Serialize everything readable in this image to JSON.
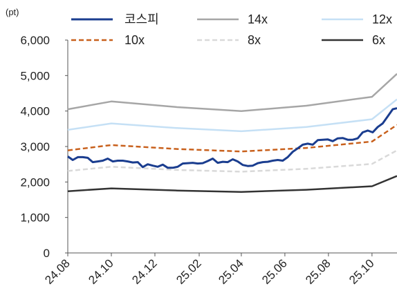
{
  "chart_data": {
    "type": "line",
    "unit_label": "(pt)",
    "ylim": [
      0,
      6000
    ],
    "yticks": [
      "6,000",
      "5,000",
      "4,000",
      "3,000",
      "2,000",
      "1,000",
      "0"
    ],
    "ytick_values": [
      6000,
      5000,
      4000,
      3000,
      2000,
      1000,
      0
    ],
    "xlim": [
      "2024-08-01",
      "2025-11-05"
    ],
    "xticks": [
      "24.08",
      "24.10",
      "24.12",
      "25.02",
      "25.04",
      "25.06",
      "25.08",
      "25.10"
    ],
    "xtick_dates": [
      "2024-08-01",
      "2024-10-01",
      "2024-12-01",
      "2025-02-01",
      "2025-04-01",
      "2025-06-01",
      "2025-08-01",
      "2025-10-01"
    ],
    "grid": false,
    "legend_position": "top",
    "series": [
      {
        "name": "코스피",
        "color": "#1a3d8f",
        "dash": "solid",
        "width": 3,
        "points": [
          [
            "2024-08-01",
            2720
          ],
          [
            "2024-08-08",
            2620
          ],
          [
            "2024-08-15",
            2700
          ],
          [
            "2024-08-22",
            2700
          ],
          [
            "2024-08-29",
            2680
          ],
          [
            "2024-09-05",
            2560
          ],
          [
            "2024-09-12",
            2580
          ],
          [
            "2024-09-19",
            2600
          ],
          [
            "2024-09-26",
            2660
          ],
          [
            "2024-10-03",
            2580
          ],
          [
            "2024-10-10",
            2600
          ],
          [
            "2024-10-17",
            2600
          ],
          [
            "2024-10-24",
            2580
          ],
          [
            "2024-10-31",
            2550
          ],
          [
            "2024-11-07",
            2560
          ],
          [
            "2024-11-14",
            2420
          ],
          [
            "2024-11-21",
            2500
          ],
          [
            "2024-11-28",
            2460
          ],
          [
            "2024-12-05",
            2430
          ],
          [
            "2024-12-12",
            2490
          ],
          [
            "2024-12-19",
            2400
          ],
          [
            "2024-12-26",
            2400
          ],
          [
            "2025-01-02",
            2430
          ],
          [
            "2025-01-09",
            2520
          ],
          [
            "2025-01-16",
            2530
          ],
          [
            "2025-01-23",
            2540
          ],
          [
            "2025-01-30",
            2520
          ],
          [
            "2025-02-06",
            2530
          ],
          [
            "2025-02-13",
            2590
          ],
          [
            "2025-02-20",
            2660
          ],
          [
            "2025-02-27",
            2540
          ],
          [
            "2025-03-06",
            2570
          ],
          [
            "2025-03-13",
            2560
          ],
          [
            "2025-03-20",
            2640
          ],
          [
            "2025-03-27",
            2580
          ],
          [
            "2025-04-03",
            2480
          ],
          [
            "2025-04-10",
            2450
          ],
          [
            "2025-04-17",
            2460
          ],
          [
            "2025-04-24",
            2530
          ],
          [
            "2025-05-01",
            2560
          ],
          [
            "2025-05-08",
            2570
          ],
          [
            "2025-05-15",
            2600
          ],
          [
            "2025-05-22",
            2620
          ],
          [
            "2025-05-29",
            2600
          ],
          [
            "2025-06-05",
            2700
          ],
          [
            "2025-06-12",
            2850
          ],
          [
            "2025-06-19",
            2950
          ],
          [
            "2025-06-26",
            3050
          ],
          [
            "2025-07-03",
            3080
          ],
          [
            "2025-07-10",
            3050
          ],
          [
            "2025-07-17",
            3180
          ],
          [
            "2025-07-24",
            3190
          ],
          [
            "2025-07-31",
            3200
          ],
          [
            "2025-08-07",
            3150
          ],
          [
            "2025-08-14",
            3230
          ],
          [
            "2025-08-21",
            3240
          ],
          [
            "2025-08-28",
            3190
          ],
          [
            "2025-09-04",
            3190
          ],
          [
            "2025-09-11",
            3230
          ],
          [
            "2025-09-18",
            3400
          ],
          [
            "2025-09-25",
            3450
          ],
          [
            "2025-10-02",
            3400
          ],
          [
            "2025-10-09",
            3550
          ],
          [
            "2025-10-16",
            3650
          ],
          [
            "2025-10-23",
            3850
          ],
          [
            "2025-10-30",
            4050
          ],
          [
            "2025-11-05",
            4080
          ]
        ]
      },
      {
        "name": "14x",
        "color": "#a6a6a6",
        "dash": "solid",
        "width": 2.5,
        "points": [
          [
            "2024-08-01",
            4050
          ],
          [
            "2024-10-01",
            4270
          ],
          [
            "2025-01-01",
            4110
          ],
          [
            "2025-04-01",
            4000
          ],
          [
            "2025-07-01",
            4150
          ],
          [
            "2025-10-01",
            4400
          ],
          [
            "2025-11-05",
            5050
          ]
        ]
      },
      {
        "name": "12x",
        "color": "#c5e0f5",
        "dash": "solid",
        "width": 2.5,
        "points": [
          [
            "2024-08-01",
            3470
          ],
          [
            "2024-10-01",
            3650
          ],
          [
            "2025-01-01",
            3520
          ],
          [
            "2025-04-01",
            3430
          ],
          [
            "2025-07-01",
            3550
          ],
          [
            "2025-10-01",
            3770
          ],
          [
            "2025-11-05",
            4330
          ]
        ]
      },
      {
        "name": "10x",
        "color": "#c8601c",
        "dash": "dashed",
        "width": 2.5,
        "points": [
          [
            "2024-08-01",
            2890
          ],
          [
            "2024-10-01",
            3040
          ],
          [
            "2025-01-01",
            2930
          ],
          [
            "2025-04-01",
            2860
          ],
          [
            "2025-07-01",
            2960
          ],
          [
            "2025-10-01",
            3140
          ],
          [
            "2025-11-05",
            3610
          ]
        ]
      },
      {
        "name": "8x",
        "color": "#d9d9d9",
        "dash": "dashed",
        "width": 2.5,
        "points": [
          [
            "2024-08-01",
            2310
          ],
          [
            "2024-10-01",
            2430
          ],
          [
            "2025-01-01",
            2340
          ],
          [
            "2025-04-01",
            2290
          ],
          [
            "2025-07-01",
            2370
          ],
          [
            "2025-10-01",
            2510
          ],
          [
            "2025-11-05",
            2890
          ]
        ]
      },
      {
        "name": "6x",
        "color": "#333333",
        "dash": "solid",
        "width": 2.5,
        "points": [
          [
            "2024-08-01",
            1740
          ],
          [
            "2024-10-01",
            1820
          ],
          [
            "2025-01-01",
            1760
          ],
          [
            "2025-04-01",
            1720
          ],
          [
            "2025-07-01",
            1780
          ],
          [
            "2025-10-01",
            1880
          ],
          [
            "2025-11-05",
            2170
          ]
        ]
      }
    ]
  }
}
